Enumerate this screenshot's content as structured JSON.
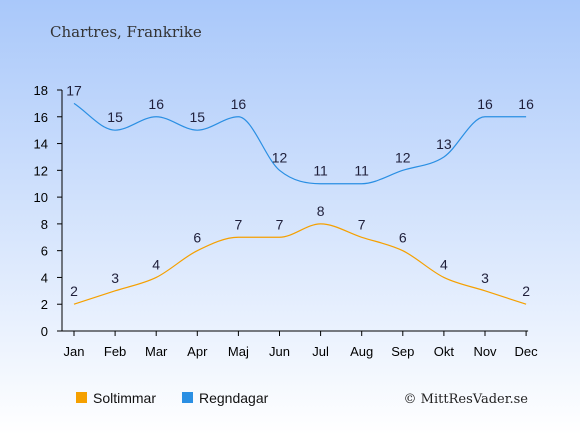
{
  "chart_data": {
    "type": "line",
    "title": "Chartres, Frankrike",
    "categories": [
      "Jan",
      "Feb",
      "Mar",
      "Apr",
      "Maj",
      "Jun",
      "Jul",
      "Aug",
      "Sep",
      "Okt",
      "Nov",
      "Dec"
    ],
    "ylim": [
      0,
      18
    ],
    "yticks": [
      "0",
      "2",
      "4",
      "6",
      "8",
      "10",
      "12",
      "14",
      "16",
      "18"
    ],
    "grid": false,
    "legend_position": "bottom-left",
    "series": [
      {
        "name": "Soltimmar",
        "color": "#f5a000",
        "values": [
          2,
          3,
          4,
          6,
          7,
          7,
          8,
          7,
          6,
          4,
          3,
          2
        ]
      },
      {
        "name": "Regndagar",
        "color": "#2a8fe3",
        "values": [
          17,
          15,
          16,
          15,
          16,
          12,
          11,
          11,
          12,
          13,
          16,
          16
        ]
      }
    ]
  },
  "copyright": "© MittResVader.se",
  "colors": {
    "background_top": "#a9c8fa",
    "background_bottom": "#ffffff",
    "axis": "#000000"
  }
}
